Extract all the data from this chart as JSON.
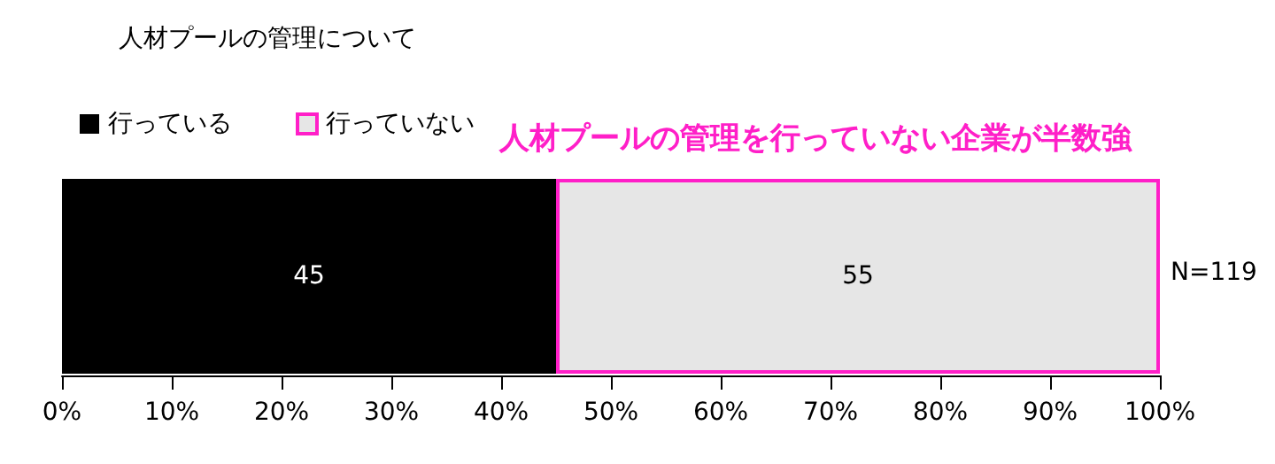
{
  "chart_data": {
    "type": "bar",
    "orientation": "horizontal",
    "stacked": true,
    "title": "人材プールの管理について",
    "categories": [
      null
    ],
    "series": [
      {
        "name": "行っている",
        "color": "#000000",
        "values": [
          45
        ]
      },
      {
        "name": "行っていない",
        "color": "#e6e6e6",
        "values": [
          55
        ]
      }
    ],
    "xlim": [
      0,
      100
    ],
    "xticks": [
      {
        "value": 0,
        "label": "0%"
      },
      {
        "value": 10,
        "label": "10%"
      },
      {
        "value": 20,
        "label": "20%"
      },
      {
        "value": 30,
        "label": "30%"
      },
      {
        "value": 40,
        "label": "40%"
      },
      {
        "value": 50,
        "label": "50%"
      },
      {
        "value": 60,
        "label": "60%"
      },
      {
        "value": 70,
        "label": "70%"
      },
      {
        "value": 80,
        "label": "80%"
      },
      {
        "value": 90,
        "label": "90%"
      },
      {
        "value": 100,
        "label": "100%"
      }
    ],
    "data_labels": true,
    "legend": "top left",
    "grid": false,
    "annotations": [
      "人材プールの管理を行っていない企業が半数強",
      "N=119"
    ]
  }
}
